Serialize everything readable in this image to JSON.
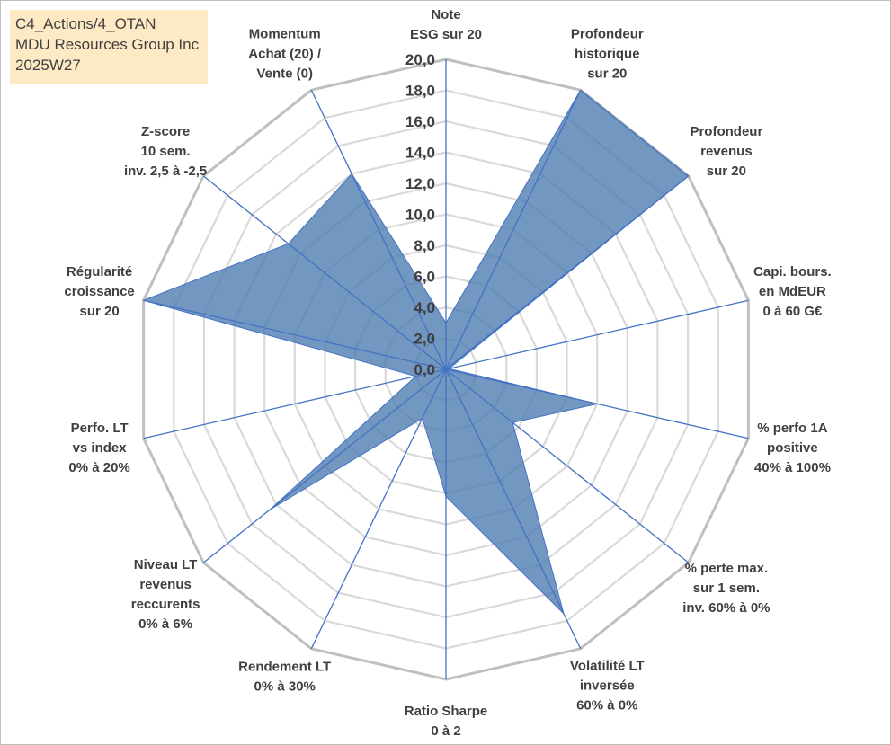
{
  "title_box": {
    "line1": "C4_Actions/4_OTAN",
    "line2": "MDU Resources Group Inc",
    "line3": "2025W27"
  },
  "colors": {
    "fill": "#4a7ab0",
    "spoke": "#4472c4",
    "grid_outer": "#bfbfbf",
    "grid_inner": "#d9d9d9",
    "title_bg": "#fde9c4"
  },
  "chart_data": {
    "type": "radar",
    "rmin": 0,
    "rmax": 20,
    "step": 2,
    "tick_labels": [
      "0,0",
      "2,0",
      "4,0",
      "6,0",
      "8,0",
      "10,0",
      "12,0",
      "14,0",
      "16,0",
      "18,0",
      "20,0"
    ],
    "grid": true,
    "axes": [
      {
        "label": [
          "Note",
          "ESG sur 20"
        ],
        "value": 3
      },
      {
        "label": [
          "Profondeur",
          "historique",
          "sur 20"
        ],
        "value": 20
      },
      {
        "label": [
          "Profondeur",
          "revenus",
          "sur 20"
        ],
        "value": 20
      },
      {
        "label": [
          "Capi. bours.",
          "en MdEUR",
          "0 à 60 G€"
        ],
        "value": 0.2
      },
      {
        "label": [
          "% perfo 1A",
          "positive",
          "40% à 100%"
        ],
        "value": 10
      },
      {
        "label": [
          "% perte max.",
          "sur 1 sem.",
          "inv. 60% à 0%"
        ],
        "value": 5.5
      },
      {
        "label": [
          "Volatilité LT",
          "inversée",
          "60% à 0%"
        ],
        "value": 17.5
      },
      {
        "label": [
          "Ratio Sharpe",
          "0 à 2"
        ],
        "value": 8.2
      },
      {
        "label": [
          "Rendement LT",
          "0% à 30%"
        ],
        "value": 3.5
      },
      {
        "label": [
          "Niveau LT",
          "revenus",
          "reccurents",
          "0% à 6%"
        ],
        "value": 14.5
      },
      {
        "label": [
          "Perfo. LT",
          "vs index",
          "0% à 20%"
        ],
        "value": 2
      },
      {
        "label": [
          "Régularité",
          "croissance",
          "sur 20"
        ],
        "value": 20
      },
      {
        "label": [
          "Z-score",
          "10 sem.",
          "inv. 2,5 à -2,5"
        ],
        "value": 13
      },
      {
        "label": [
          "Momentum",
          "Achat (20) /",
          "Vente (0)"
        ],
        "value": 14
      }
    ]
  }
}
